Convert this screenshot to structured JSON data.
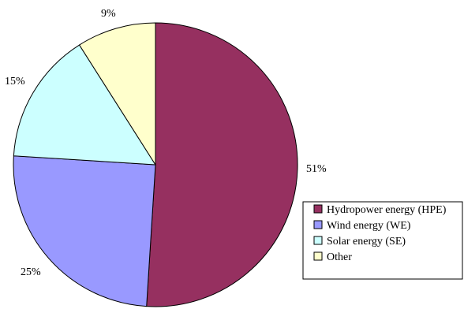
{
  "chart_data": {
    "type": "pie",
    "title": "",
    "slices": [
      {
        "label": "Hydropower energy (HPE)",
        "value": 51,
        "display": "51%",
        "color": "#963060"
      },
      {
        "label": "Wind energy (WE)",
        "value": 25,
        "display": "25%",
        "color": "#9999FF"
      },
      {
        "label": "Solar energy (SE)",
        "value": 15,
        "display": "15%",
        "color": "#CCFFFF"
      },
      {
        "label": "Other",
        "value": 9,
        "display": "9%",
        "color": "#FFFFCC"
      }
    ],
    "legend_position": "bottom-right",
    "start_angle": "top",
    "direction": "clockwise"
  }
}
